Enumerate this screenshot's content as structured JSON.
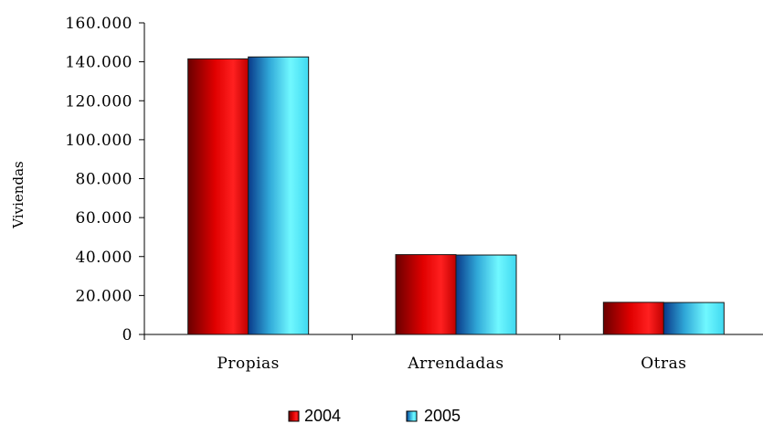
{
  "chart_data": {
    "type": "bar",
    "title": "",
    "xlabel": "",
    "ylabel": "Viviendas",
    "categories": [
      "Propias",
      "Arrendadas",
      "Otras"
    ],
    "series": [
      {
        "name": "2004",
        "values": [
          141500,
          41000,
          16500
        ],
        "color": "#e00000"
      },
      {
        "name": "2005",
        "values": [
          142500,
          40800,
          16400
        ],
        "color": "#50e8f0"
      }
    ],
    "ylim": [
      0,
      160000
    ],
    "yticks": [
      0,
      20000,
      40000,
      60000,
      80000,
      100000,
      120000,
      140000,
      160000
    ],
    "ytick_labels": [
      "0",
      "20.000",
      "40.000",
      "60.000",
      "80.000",
      "100.000",
      "120.000",
      "140.000",
      "160.000"
    ],
    "grid": false,
    "legend_position": "bottom"
  }
}
